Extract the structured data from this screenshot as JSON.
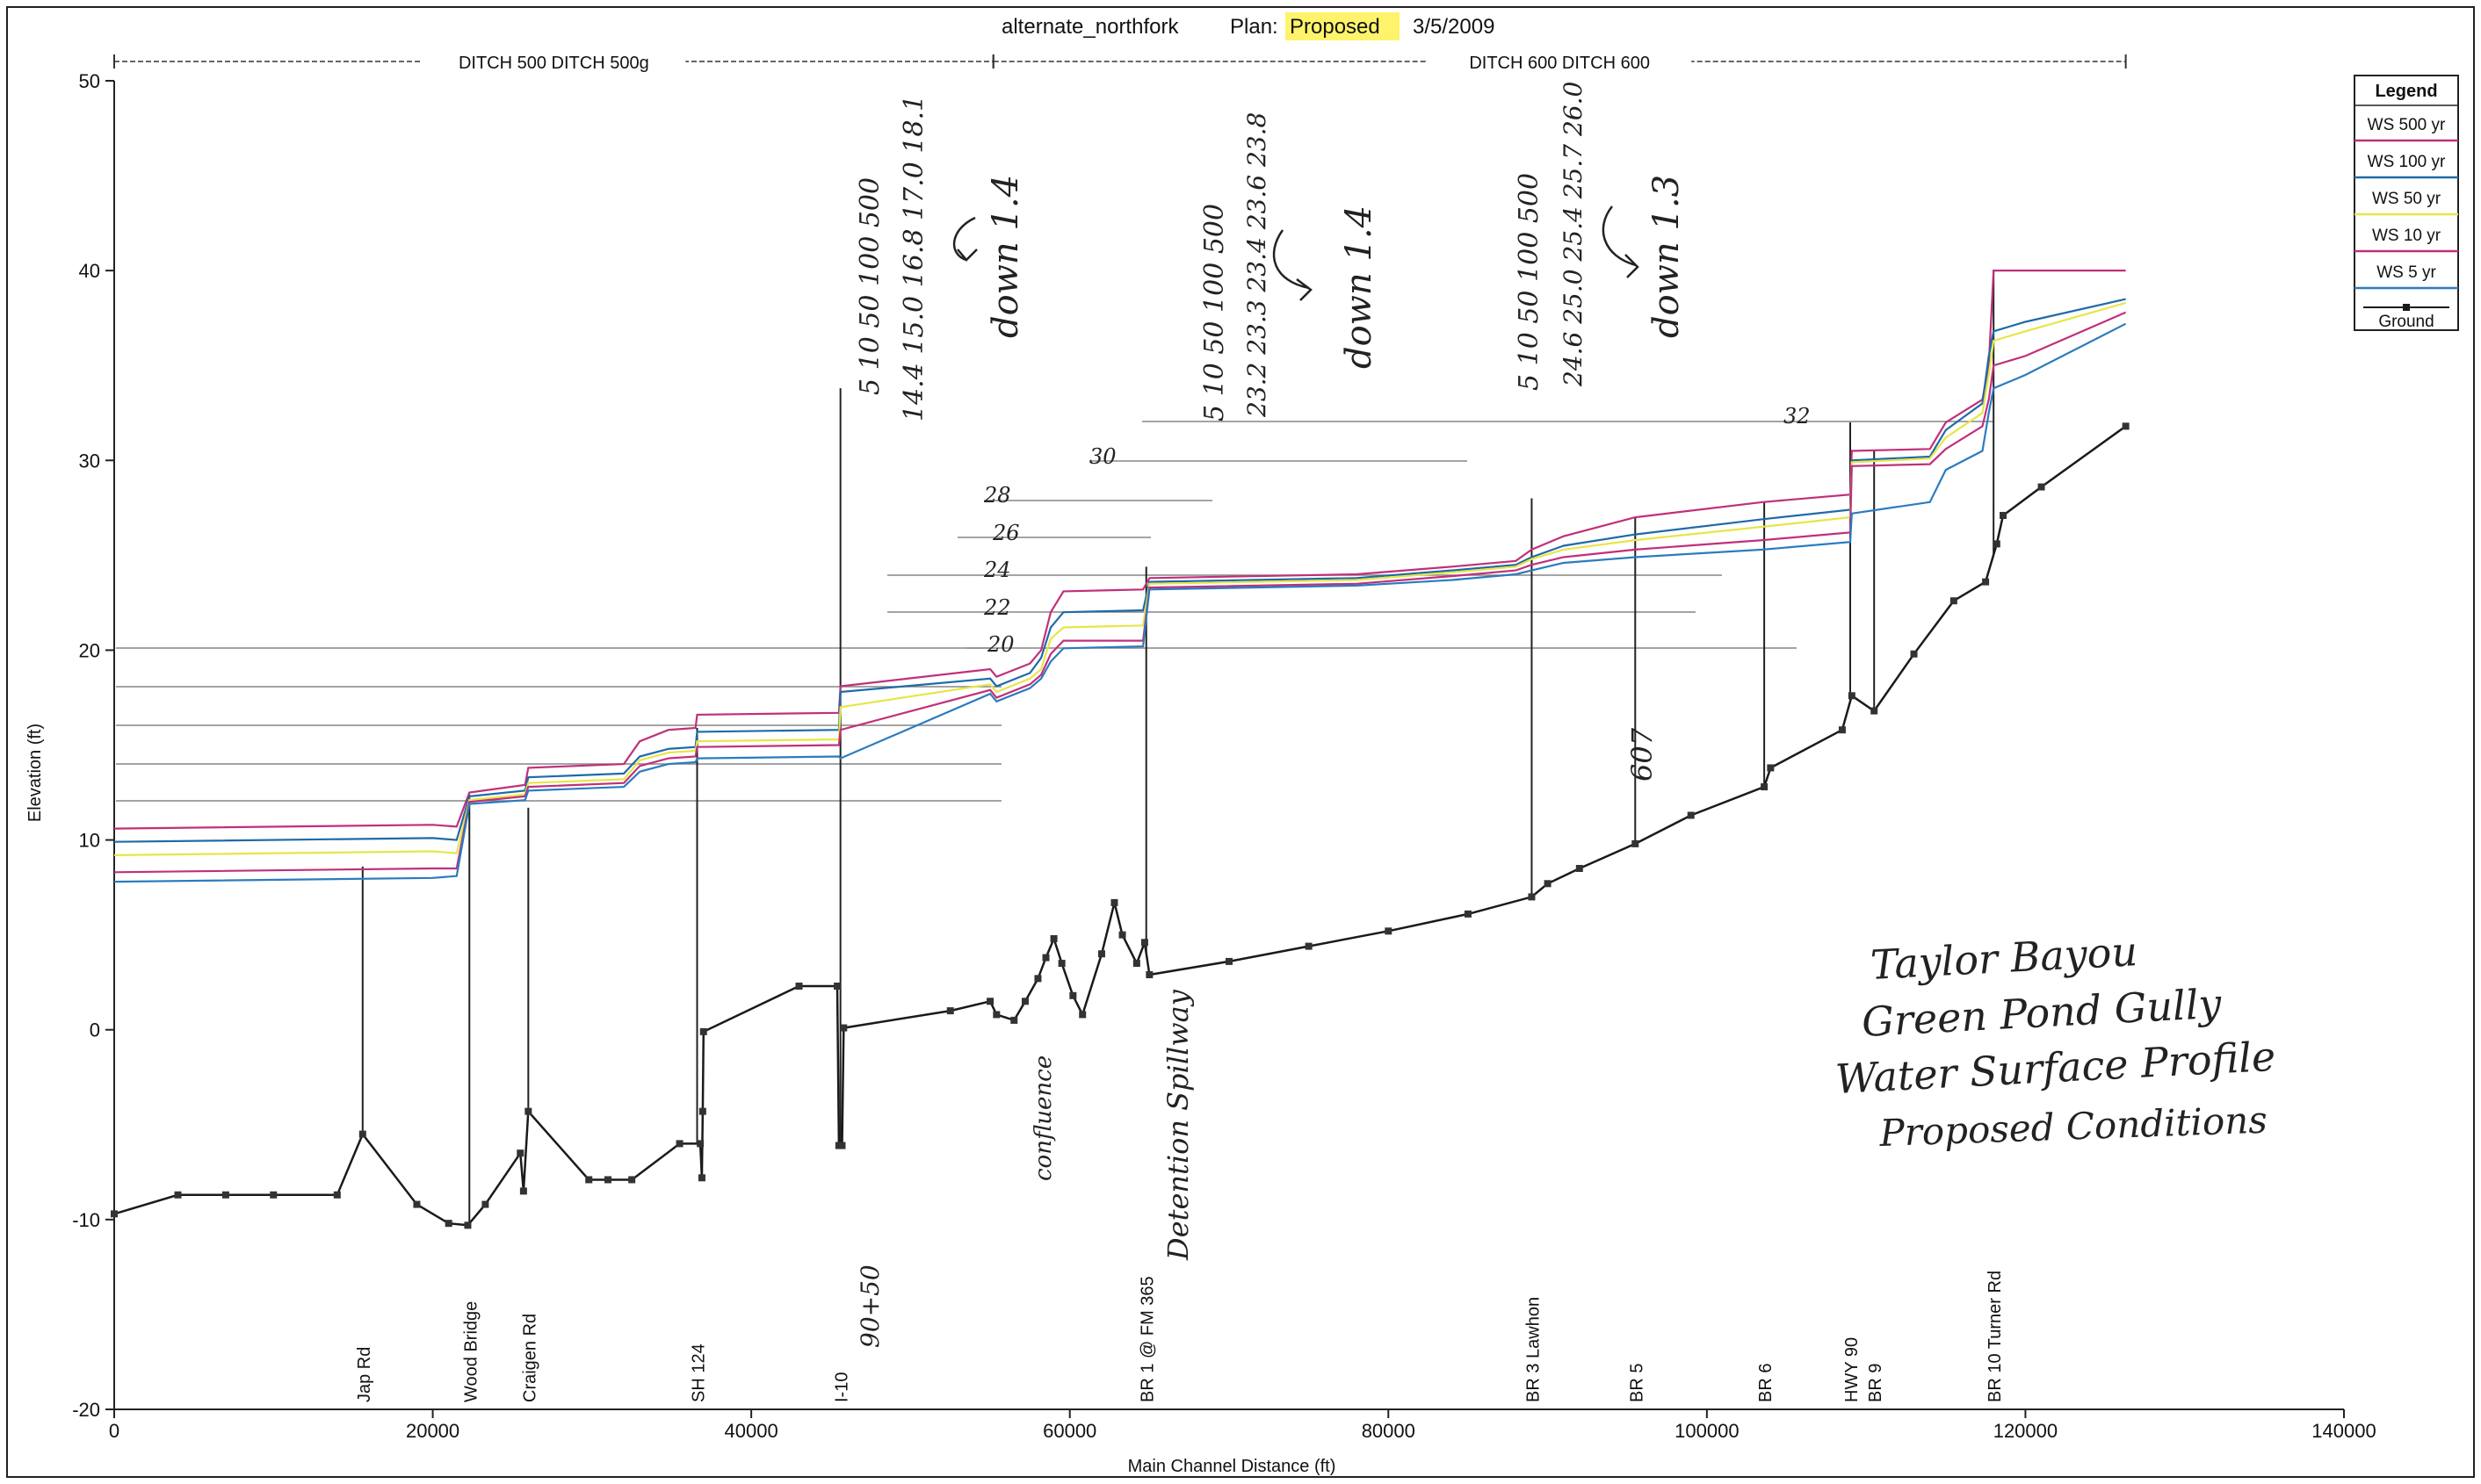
{
  "chart_data": {
    "type": "line",
    "header": {
      "plan_name": "alternate_northfork",
      "plan_label": "Plan:",
      "plan_value": "Proposed",
      "date": "3/5/2009"
    },
    "reaches": [
      {
        "label": "DITCH 500 DITCH 500g",
        "x_start": 0,
        "x_end": 55200
      },
      {
        "label": "DITCH 600 DITCH 600",
        "x_start": 55200,
        "x_end": 126300
      }
    ],
    "xlabel": "Main Channel Distance (ft)",
    "ylabel": "Elevation (ft)",
    "xlim": [
      0,
      140000
    ],
    "ylim": [
      -20,
      50
    ],
    "x_ticks": [
      0,
      20000,
      40000,
      60000,
      80000,
      100000,
      120000,
      140000
    ],
    "y_ticks": [
      -20,
      -10,
      0,
      10,
      20,
      30,
      40,
      50
    ],
    "legend": {
      "title": "Legend",
      "placement": "top-right",
      "entries": [
        "WS  500 yr",
        "WS  100 yr",
        "WS  50 yr",
        "WS  10 yr",
        "WS  5 yr",
        "Ground"
      ]
    },
    "series": [
      {
        "name": "WS  500 yr",
        "color": "#c0307a",
        "points": [
          [
            0,
            10.6
          ],
          [
            20000,
            10.8
          ],
          [
            21500,
            10.7
          ],
          [
            22300,
            12.5
          ],
          [
            25800,
            12.9
          ],
          [
            26000,
            13.8
          ],
          [
            32000,
            14.0
          ],
          [
            33000,
            15.2
          ],
          [
            34800,
            15.8
          ],
          [
            36500,
            15.9
          ],
          [
            36600,
            16.6
          ],
          [
            45500,
            16.7
          ],
          [
            45600,
            18.1
          ],
          [
            55000,
            19.0
          ],
          [
            55400,
            18.6
          ],
          [
            57500,
            19.3
          ],
          [
            58200,
            20.0
          ],
          [
            58800,
            22.0
          ],
          [
            59600,
            23.1
          ],
          [
            64600,
            23.2
          ],
          [
            65000,
            23.8
          ],
          [
            78000,
            24.0
          ],
          [
            84000,
            24.4
          ],
          [
            88000,
            24.7
          ],
          [
            89000,
            25.3
          ],
          [
            91000,
            26.0
          ],
          [
            95500,
            27.0
          ],
          [
            103500,
            27.8
          ],
          [
            109000,
            28.2
          ],
          [
            109100,
            30.5
          ],
          [
            114000,
            30.6
          ],
          [
            115000,
            32.0
          ],
          [
            117300,
            33.2
          ],
          [
            117700,
            35.0
          ],
          [
            118000,
            40.0
          ],
          [
            126300,
            40.0
          ]
        ]
      },
      {
        "name": "WS  100 yr",
        "color": "#1f6aa8",
        "points": [
          [
            0,
            9.9
          ],
          [
            20000,
            10.1
          ],
          [
            21500,
            10.0
          ],
          [
            22300,
            12.3
          ],
          [
            25800,
            12.6
          ],
          [
            26000,
            13.3
          ],
          [
            32000,
            13.5
          ],
          [
            33000,
            14.4
          ],
          [
            34800,
            14.8
          ],
          [
            36500,
            14.9
          ],
          [
            36600,
            15.7
          ],
          [
            45500,
            15.8
          ],
          [
            45600,
            17.8
          ],
          [
            55000,
            18.5
          ],
          [
            55400,
            18.1
          ],
          [
            57500,
            18.8
          ],
          [
            58200,
            19.6
          ],
          [
            58800,
            21.2
          ],
          [
            59600,
            22.0
          ],
          [
            64600,
            22.1
          ],
          [
            65000,
            23.6
          ],
          [
            78000,
            23.8
          ],
          [
            84000,
            24.2
          ],
          [
            88000,
            24.5
          ],
          [
            89000,
            24.9
          ],
          [
            91000,
            25.5
          ],
          [
            95500,
            26.1
          ],
          [
            103500,
            26.9
          ],
          [
            109000,
            27.4
          ],
          [
            109100,
            30.0
          ],
          [
            114000,
            30.2
          ],
          [
            115000,
            31.6
          ],
          [
            117300,
            33.0
          ],
          [
            117700,
            35.5
          ],
          [
            118000,
            36.8
          ],
          [
            120000,
            37.3
          ],
          [
            126300,
            38.5
          ]
        ]
      },
      {
        "name": "WS  50 yr",
        "color": "#e6e64a",
        "points": [
          [
            0,
            9.2
          ],
          [
            20000,
            9.4
          ],
          [
            21500,
            9.3
          ],
          [
            22300,
            12.1
          ],
          [
            25800,
            12.4
          ],
          [
            26000,
            13.0
          ],
          [
            32000,
            13.2
          ],
          [
            33000,
            14.2
          ],
          [
            34800,
            14.6
          ],
          [
            36500,
            14.7
          ],
          [
            36600,
            15.2
          ],
          [
            45500,
            15.3
          ],
          [
            45600,
            17.0
          ],
          [
            55000,
            18.2
          ],
          [
            55400,
            17.8
          ],
          [
            57500,
            18.5
          ],
          [
            58200,
            19.0
          ],
          [
            58800,
            20.6
          ],
          [
            59600,
            21.2
          ],
          [
            64600,
            21.3
          ],
          [
            65000,
            23.5
          ],
          [
            78000,
            23.7
          ],
          [
            84000,
            24.1
          ],
          [
            88000,
            24.4
          ],
          [
            89000,
            24.8
          ],
          [
            91000,
            25.3
          ],
          [
            95500,
            25.8
          ],
          [
            103500,
            26.5
          ],
          [
            109000,
            27.0
          ],
          [
            109100,
            29.9
          ],
          [
            114000,
            30.1
          ],
          [
            115000,
            31.2
          ],
          [
            117300,
            32.5
          ],
          [
            117700,
            34.5
          ],
          [
            118000,
            36.3
          ],
          [
            120000,
            36.8
          ],
          [
            126300,
            38.3
          ]
        ]
      },
      {
        "name": "WS  10 yr",
        "color": "#c0307a",
        "points": [
          [
            0,
            8.3
          ],
          [
            20000,
            8.5
          ],
          [
            21500,
            8.5
          ],
          [
            22300,
            12.0
          ],
          [
            25800,
            12.3
          ],
          [
            26000,
            12.8
          ],
          [
            32000,
            13.0
          ],
          [
            33000,
            13.9
          ],
          [
            34800,
            14.3
          ],
          [
            36500,
            14.4
          ],
          [
            36600,
            14.9
          ],
          [
            45500,
            15.0
          ],
          [
            45600,
            15.8
          ],
          [
            55000,
            17.9
          ],
          [
            55400,
            17.5
          ],
          [
            57500,
            18.2
          ],
          [
            58200,
            18.7
          ],
          [
            58800,
            19.8
          ],
          [
            59600,
            20.5
          ],
          [
            64600,
            20.5
          ],
          [
            65000,
            23.3
          ],
          [
            78000,
            23.5
          ],
          [
            84000,
            23.9
          ],
          [
            88000,
            24.2
          ],
          [
            89000,
            24.5
          ],
          [
            91000,
            24.9
          ],
          [
            95500,
            25.3
          ],
          [
            103500,
            25.8
          ],
          [
            109000,
            26.2
          ],
          [
            109100,
            29.7
          ],
          [
            114000,
            29.8
          ],
          [
            115000,
            30.6
          ],
          [
            117300,
            31.8
          ],
          [
            117700,
            33.2
          ],
          [
            118000,
            35.0
          ],
          [
            120000,
            35.5
          ],
          [
            126300,
            37.8
          ]
        ]
      },
      {
        "name": "WS  5 yr",
        "color": "#2b7bbf",
        "points": [
          [
            0,
            7.8
          ],
          [
            20000,
            8.0
          ],
          [
            21500,
            8.1
          ],
          [
            22300,
            11.9
          ],
          [
            25800,
            12.1
          ],
          [
            26000,
            12.6
          ],
          [
            32000,
            12.8
          ],
          [
            33000,
            13.6
          ],
          [
            34800,
            14.0
          ],
          [
            36500,
            14.1
          ],
          [
            36600,
            14.3
          ],
          [
            45500,
            14.4
          ],
          [
            45600,
            14.3
          ],
          [
            55000,
            17.7
          ],
          [
            55400,
            17.3
          ],
          [
            57500,
            18.0
          ],
          [
            58200,
            18.5
          ],
          [
            58800,
            19.4
          ],
          [
            59600,
            20.1
          ],
          [
            64600,
            20.2
          ],
          [
            65000,
            23.2
          ],
          [
            78000,
            23.4
          ],
          [
            84000,
            23.7
          ],
          [
            88000,
            24.0
          ],
          [
            89000,
            24.2
          ],
          [
            91000,
            24.6
          ],
          [
            95500,
            24.9
          ],
          [
            103500,
            25.3
          ],
          [
            109000,
            25.7
          ],
          [
            109100,
            27.2
          ],
          [
            114000,
            27.8
          ],
          [
            115000,
            29.5
          ],
          [
            117300,
            30.5
          ],
          [
            117700,
            32.5
          ],
          [
            118000,
            33.8
          ],
          [
            120000,
            34.5
          ],
          [
            126300,
            37.2
          ]
        ]
      },
      {
        "name": "Ground",
        "color": "#1a1a1a",
        "points": [
          [
            0,
            -9.7
          ],
          [
            4000,
            -8.7
          ],
          [
            7000,
            -8.7
          ],
          [
            10000,
            -8.7
          ],
          [
            14000,
            -8.7
          ],
          [
            15600,
            -5.5
          ],
          [
            19000,
            -9.2
          ],
          [
            21000,
            -10.2
          ],
          [
            22200,
            -10.3
          ],
          [
            23300,
            -9.2
          ],
          [
            25500,
            -6.5
          ],
          [
            25700,
            -8.5
          ],
          [
            26000,
            -4.3
          ],
          [
            29800,
            -7.9
          ],
          [
            31000,
            -7.9
          ],
          [
            32500,
            -7.9
          ],
          [
            35500,
            -6.0
          ],
          [
            36800,
            -6.0
          ],
          [
            36900,
            -7.8
          ],
          [
            36950,
            -4.3
          ],
          [
            37000,
            -0.1
          ],
          [
            43000,
            2.3
          ],
          [
            45400,
            2.3
          ],
          [
            45500,
            -6.1
          ],
          [
            45700,
            -6.1
          ],
          [
            45800,
            0.1
          ],
          [
            52500,
            1.0
          ],
          [
            55000,
            1.5
          ],
          [
            55400,
            0.8
          ],
          [
            56500,
            0.5
          ],
          [
            57200,
            1.5
          ],
          [
            58000,
            2.7
          ],
          [
            58500,
            3.8
          ],
          [
            59000,
            4.8
          ],
          [
            59500,
            3.5
          ],
          [
            60200,
            1.8
          ],
          [
            60800,
            0.8
          ],
          [
            62000,
            4.0
          ],
          [
            62800,
            6.7
          ],
          [
            63300,
            5.0
          ],
          [
            64200,
            3.5
          ],
          [
            64700,
            4.6
          ],
          [
            65000,
            2.9
          ],
          [
            70000,
            3.6
          ],
          [
            75000,
            4.4
          ],
          [
            80000,
            5.2
          ],
          [
            85000,
            6.1
          ],
          [
            89000,
            7.0
          ],
          [
            90000,
            7.7
          ],
          [
            92000,
            8.5
          ],
          [
            95500,
            9.8
          ],
          [
            99000,
            11.3
          ],
          [
            103600,
            12.8
          ],
          [
            104000,
            13.8
          ],
          [
            108500,
            15.8
          ],
          [
            109100,
            17.6
          ],
          [
            110500,
            16.8
          ],
          [
            113000,
            19.8
          ],
          [
            115500,
            22.6
          ],
          [
            117500,
            23.6
          ],
          [
            118200,
            25.6
          ],
          [
            118600,
            27.1
          ],
          [
            121000,
            28.6
          ],
          [
            126300,
            31.8
          ]
        ]
      }
    ],
    "structures": [
      {
        "label": "Jap Rd",
        "x": 15600,
        "top": 8.6
      },
      {
        "label": "Wood Bridge",
        "x": 22300,
        "top": 12.4
      },
      {
        "label": "Craigen Rd",
        "x": 26000,
        "top": 11.7
      },
      {
        "label": "SH 124",
        "x": 36600,
        "top": 15.9
      },
      {
        "label": "I-10",
        "x": 45600,
        "top": 33.8
      },
      {
        "label": "BR 1 @ FM 365",
        "x": 64800,
        "top": 24.4
      },
      {
        "label": "BR 3 Lawhon",
        "x": 89000,
        "top": 28.0
      },
      {
        "label": "BR 5",
        "x": 95500,
        "top": 27.0
      },
      {
        "label": "BR 6",
        "x": 103600,
        "top": 27.8
      },
      {
        "label": "HWY 90",
        "x": 109000,
        "top": 32.0
      },
      {
        "label": "BR 9",
        "x": 110500,
        "top": 30.5
      },
      {
        "label": "BR 10 Turner Rd",
        "x": 118000,
        "top": 40.0
      }
    ],
    "hand_notes": {
      "table1_header": "5    10    50    100    500",
      "table1_values": "14.4  15.0  16.8  17.0  18.1",
      "table1_note": "down 1.4",
      "table2_header": "5    10    50    100    500",
      "table2_values": "23.2  23.3  23.4  23.6  23.8",
      "table2_note": "down 1.4",
      "table3_header": "5    10    50    100    500",
      "table3_values": "24.6  25.0  25.4  25.7  26.0",
      "table3_note": "down 1.3",
      "level_marks": [
        "32",
        "30",
        "28",
        "26",
        "24",
        "22",
        "20"
      ],
      "station_note": "90+50",
      "confluence_note": "confluence",
      "spillway_note": "Detention Spillway",
      "marker_note": "607",
      "title_lines": [
        "Taylor Bayou",
        "Green Pond Gully",
        "Water Surface Profile",
        "Proposed Conditions"
      ]
    }
  }
}
